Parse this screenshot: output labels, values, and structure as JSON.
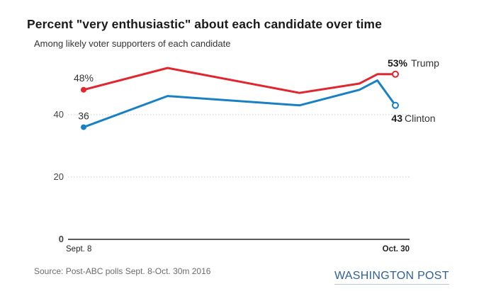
{
  "title": "Percent \"very enthusiastic\" about each candidate over time",
  "subtitle": "Among likely voter supporters of each candidate",
  "source": "Source: Post-ABC polls Sept. 8-Oct. 30m 2016",
  "credit": "WASHINGTON POST",
  "colors": {
    "trump": "#e0262f",
    "clinton": "#1a80c4",
    "grid": "#c8c8c8",
    "axis": "#222222"
  },
  "chart_data": {
    "type": "line",
    "title": "Percent \"very enthusiastic\" about each candidate over time",
    "subtitle": "Among likely voter supporters of each candidate",
    "x_ticks": [
      "Sept. 8",
      "Oct. 30"
    ],
    "x_range": [
      0,
      52
    ],
    "y_ticks": [
      0,
      20,
      40
    ],
    "ylim": [
      0,
      55
    ],
    "series": [
      {
        "name": "Trump",
        "x": [
          0,
          14,
          36,
          46,
          49,
          52
        ],
        "values": [
          48,
          55,
          47,
          50,
          53,
          53
        ],
        "start_label": "48%",
        "end_value_label": "53%",
        "end_name_label": "Trump"
      },
      {
        "name": "Clinton",
        "x": [
          0,
          14,
          36,
          46,
          49,
          52
        ],
        "values": [
          36,
          46,
          43,
          48,
          51,
          43
        ],
        "start_label": "36",
        "end_value_label": "43",
        "end_name_label": "Clinton"
      }
    ]
  }
}
